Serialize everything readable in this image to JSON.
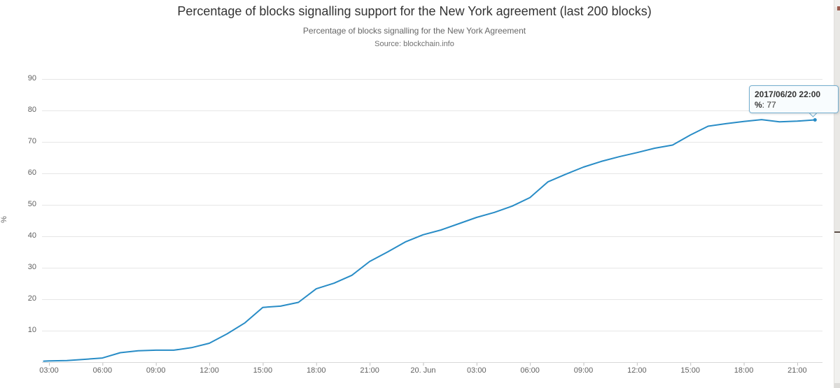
{
  "header": {
    "title": "Percentage of blocks signalling support for the New York agreement (last 200 blocks)",
    "subtitle": "Percentage of blocks signalling for the New York Agreement",
    "source": "Source: blockchain.info"
  },
  "tooltip": {
    "header": "2017/06/20 22:00",
    "series_label": "%",
    "separator": ": ",
    "value": "77"
  },
  "chart_data": {
    "type": "line",
    "title": "Percentage of blocks signalling support for the New York agreement (last 200 blocks)",
    "subtitle": "Percentage of blocks signalling for the New York Agreement",
    "source": "Source: blockchain.info",
    "xlabel": "",
    "ylabel": "%",
    "ylim": [
      0,
      90
    ],
    "ytick_interval": 10,
    "grid": true,
    "legend": "none",
    "line_color": "#288cc6",
    "grid_color": "#e6e6e6",
    "axis_color": "#d8d8d8",
    "tick_color": "#c0c0c0",
    "x_start_label": "2017/06/19 03:00",
    "x_end_label": "2017/06/20 22:00",
    "y_ticks": [
      10,
      20,
      30,
      40,
      50,
      60,
      70,
      80,
      90
    ],
    "x_ticks": [
      {
        "h": 0,
        "label": "03:00"
      },
      {
        "h": 3,
        "label": "06:00"
      },
      {
        "h": 6,
        "label": "09:00"
      },
      {
        "h": 9,
        "label": "12:00"
      },
      {
        "h": 12,
        "label": "15:00"
      },
      {
        "h": 15,
        "label": "18:00"
      },
      {
        "h": 18,
        "label": "21:00"
      },
      {
        "h": 21,
        "label": "20. Jun"
      },
      {
        "h": 24,
        "label": "03:00"
      },
      {
        "h": 27,
        "label": "06:00"
      },
      {
        "h": 30,
        "label": "09:00"
      },
      {
        "h": 33,
        "label": "12:00"
      },
      {
        "h": 36,
        "label": "15:00"
      },
      {
        "h": 39,
        "label": "18:00"
      },
      {
        "h": 42,
        "label": "21:00"
      }
    ],
    "hours": [
      -0.3,
      0,
      1,
      2,
      3,
      4,
      5,
      6,
      7,
      8,
      9,
      10,
      11,
      12,
      13,
      14,
      15,
      16,
      17,
      18,
      19,
      20,
      21,
      22,
      23,
      24,
      25,
      26,
      27,
      28,
      29,
      30,
      31,
      32,
      33,
      34,
      35,
      36,
      37,
      38,
      39,
      40,
      41,
      42,
      43
    ],
    "series": [
      {
        "name": "%",
        "values": [
          0.3,
          0.4,
          0.5,
          0.9,
          1.3,
          3.0,
          3.6,
          3.8,
          3.8,
          4.6,
          6.0,
          9.0,
          12.5,
          17.4,
          17.8,
          19.0,
          23.3,
          25.1,
          27.6,
          32.0,
          35.0,
          38.2,
          40.5,
          42.0,
          44.0,
          46.0,
          47.6,
          49.6,
          52.3,
          57.3,
          59.7,
          62.0,
          63.8,
          65.3,
          66.6,
          68.0,
          69.0,
          72.2,
          75.0,
          75.8,
          76.5,
          77.1,
          76.4,
          76.6,
          77.0
        ]
      }
    ],
    "highlighted_point": {
      "x_label": "2017/06/20 22:00",
      "value": 77
    }
  }
}
